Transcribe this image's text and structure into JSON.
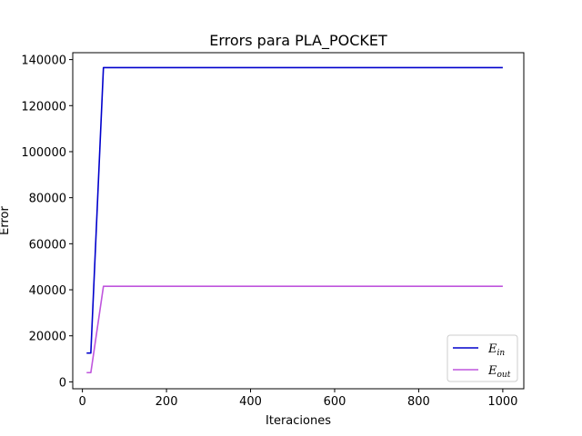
{
  "chart_data": {
    "type": "line",
    "title": "Errors para PLA_POCKET",
    "xlabel": "Iteraciones",
    "ylabel": "Error",
    "xlim": [
      -23,
      1050
    ],
    "ylim": [
      -3000,
      143000
    ],
    "xticks": [
      0,
      200,
      400,
      600,
      800,
      1000
    ],
    "yticks": [
      0,
      20000,
      40000,
      60000,
      80000,
      100000,
      120000,
      140000
    ],
    "grid": false,
    "legend_position": "lower-right",
    "series": [
      {
        "name": "E_in",
        "legend_main": "E",
        "legend_sub": "in",
        "color": "#0000cc",
        "x": [
          10,
          20,
          50,
          1000
        ],
        "y": [
          12500,
          12500,
          136500,
          136500
        ]
      },
      {
        "name": "E_out",
        "legend_main": "E",
        "legend_sub": "out",
        "color": "#bf55dd",
        "x": [
          10,
          20,
          50,
          1000
        ],
        "y": [
          4000,
          4000,
          41500,
          41500
        ]
      }
    ]
  }
}
